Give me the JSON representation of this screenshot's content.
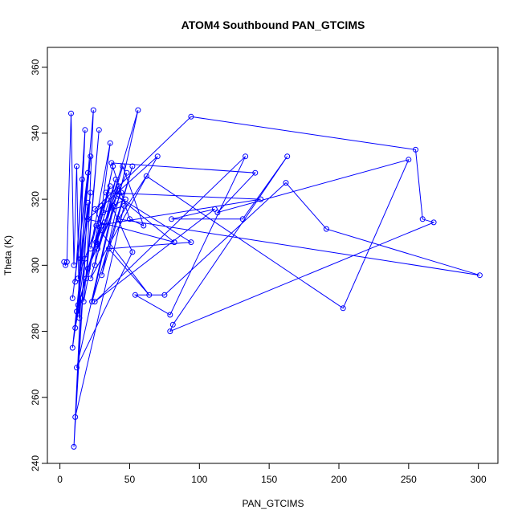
{
  "chart_data": {
    "type": "scatter",
    "title": "ATOM4 Southbound PAN_GTCIMS",
    "xlabel": "PAN_GTCIMS",
    "ylabel": "Theta (K)",
    "xlim": [
      -9,
      314
    ],
    "ylim": [
      240,
      366
    ],
    "xticks": [
      0,
      50,
      100,
      150,
      200,
      250,
      300
    ],
    "yticks": [
      240,
      260,
      280,
      300,
      320,
      340,
      360
    ],
    "grid": false,
    "color": "#0000ff",
    "series": [
      {
        "values": [
          [
            3,
            301
          ],
          [
            4,
            300
          ],
          [
            5,
            301
          ],
          [
            8,
            346
          ],
          [
            10,
            300
          ],
          [
            12,
            330
          ],
          [
            14,
            284
          ],
          [
            16,
            326
          ],
          [
            11,
            295
          ],
          [
            18,
            341
          ],
          [
            13,
            288
          ],
          [
            20,
            328
          ],
          [
            9,
            290
          ],
          [
            22,
            333
          ],
          [
            15,
            302
          ],
          [
            24,
            347
          ],
          [
            19,
            296
          ],
          [
            28,
            341
          ],
          [
            17,
            289
          ],
          [
            30,
            318
          ],
          [
            22,
            305
          ],
          [
            36,
            337
          ],
          [
            25,
            300
          ],
          [
            40,
            326
          ],
          [
            20,
            299
          ],
          [
            44,
            322
          ],
          [
            27,
            305
          ],
          [
            56,
            347
          ],
          [
            30,
            297
          ],
          [
            52,
            330
          ],
          [
            23,
            289
          ],
          [
            42,
            324
          ],
          [
            32,
            313
          ],
          [
            48,
            328
          ],
          [
            26,
            307
          ],
          [
            38,
            330
          ],
          [
            31,
            316
          ],
          [
            46,
            318
          ],
          [
            11,
            254
          ],
          [
            20,
            319
          ],
          [
            9,
            275
          ],
          [
            18,
            302
          ],
          [
            10,
            245
          ],
          [
            15,
            290
          ],
          [
            11,
            281
          ],
          [
            22,
            322
          ],
          [
            13,
            296
          ],
          [
            36,
            324
          ],
          [
            12,
            286
          ],
          [
            30,
            312
          ],
          [
            25,
            317
          ],
          [
            94,
            345
          ],
          [
            255,
            335
          ],
          [
            260,
            314
          ],
          [
            268,
            313
          ],
          [
            79,
            280
          ],
          [
            81,
            282
          ],
          [
            163,
            333
          ],
          [
            131,
            314
          ],
          [
            80,
            314
          ],
          [
            111,
            317
          ],
          [
            25,
            289
          ],
          [
            133,
            333
          ],
          [
            79,
            285
          ],
          [
            54,
            291
          ],
          [
            75,
            291
          ],
          [
            162,
            325
          ],
          [
            191,
            311
          ],
          [
            301,
            297
          ],
          [
            42,
            314
          ],
          [
            62,
            327
          ],
          [
            203,
            287
          ],
          [
            250,
            332
          ],
          [
            113,
            316
          ],
          [
            140,
            328
          ],
          [
            37,
            331
          ],
          [
            50,
            314
          ],
          [
            60,
            312
          ],
          [
            45,
            330
          ],
          [
            22,
            296
          ],
          [
            70,
            333
          ],
          [
            20,
            314
          ],
          [
            82,
            307
          ],
          [
            41,
            321
          ],
          [
            94,
            307
          ],
          [
            35,
            305
          ],
          [
            64,
            291
          ],
          [
            26,
            312
          ],
          [
            144,
            320
          ],
          [
            33,
            322
          ],
          [
            52,
            304
          ],
          [
            12,
            269
          ],
          [
            38,
            318
          ],
          [
            47,
            320
          ]
        ]
      }
    ]
  }
}
